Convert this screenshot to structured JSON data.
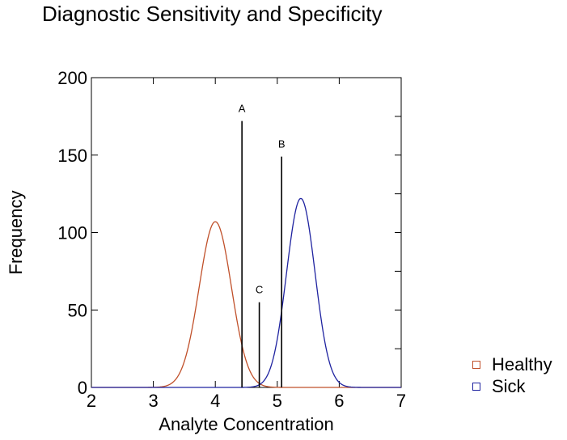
{
  "chart_data": {
    "type": "line",
    "title": "Diagnostic Sensitivity and Specificity",
    "xlabel": "Analyte Concentration",
    "ylabel": "Frequency",
    "xlim": [
      2,
      7
    ],
    "ylim": [
      0,
      200
    ],
    "x_ticks": [
      "2",
      "3",
      "4",
      "5",
      "6",
      "7"
    ],
    "y_ticks": [
      "0",
      "50",
      "100",
      "150",
      "200"
    ],
    "series": [
      {
        "name": "Healthy",
        "color": "#c0502a",
        "peak_x": 4.0,
        "peak_y": 107,
        "sd": 0.26
      },
      {
        "name": "Sick",
        "color": "#1f23a0",
        "peak_x": 5.38,
        "peak_y": 122,
        "sd": 0.23
      }
    ],
    "markers": [
      {
        "label": "A",
        "x": 4.43,
        "y": 172
      },
      {
        "label": "B",
        "x": 5.07,
        "y": 149
      },
      {
        "label": "C",
        "x": 4.71,
        "y": 55
      }
    ],
    "legend_position": "right-bottom",
    "grid": false
  }
}
